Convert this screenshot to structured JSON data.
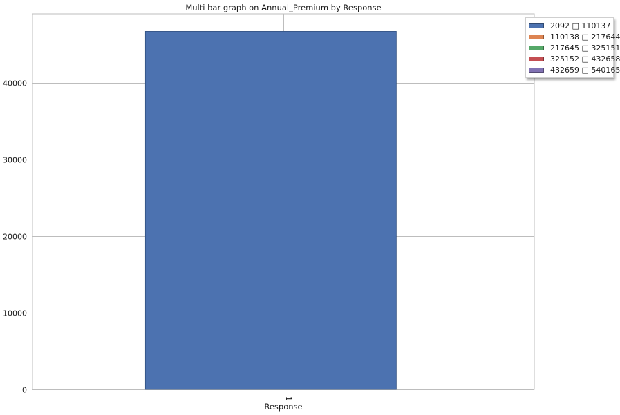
{
  "chart_data": {
    "type": "bar",
    "title": "Multi bar graph on Annual_Premium by Response",
    "xlabel": "Response",
    "ylabel": "",
    "categories": [
      "1"
    ],
    "ylim": [
      0,
      49000
    ],
    "yticks": [
      0,
      10000,
      20000,
      30000,
      40000
    ],
    "grid": true,
    "legend_position": "top-right, outside plot",
    "series": [
      {
        "name": "2092 □ 110137",
        "values": [
          46710
        ],
        "color": "#4c72b0"
      },
      {
        "name": "110138 □ 217644",
        "values": [
          0
        ],
        "color": "#dd8452"
      },
      {
        "name": "217645 □ 325151",
        "values": [
          0
        ],
        "color": "#55a868"
      },
      {
        "name": "325152 □ 432658",
        "values": [
          0
        ],
        "color": "#c44e52"
      },
      {
        "name": "432659 □ 540165",
        "values": [
          0
        ],
        "color": "#8172b3"
      }
    ]
  }
}
